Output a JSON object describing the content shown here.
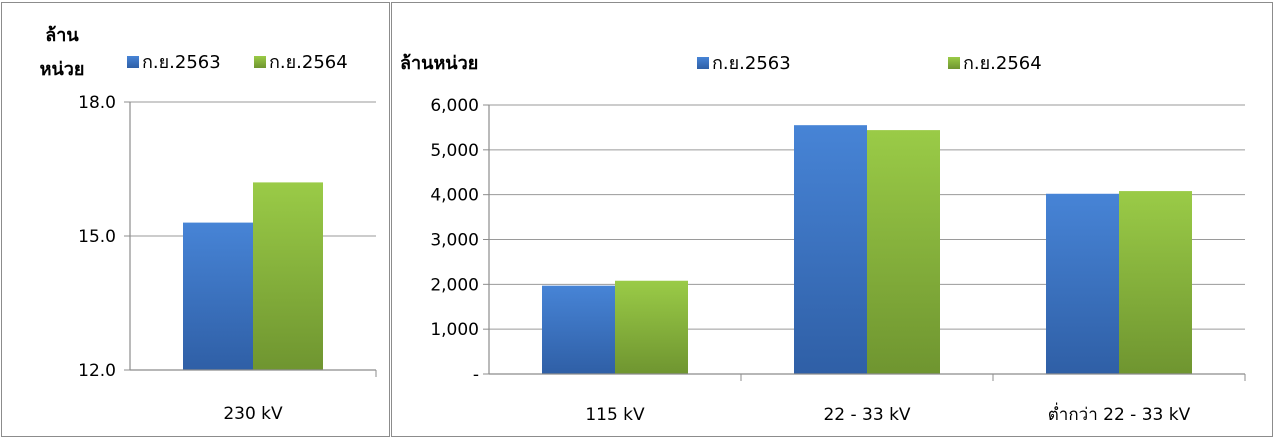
{
  "colors": {
    "series_1": "#3f77c7",
    "series_2": "#8ebb3c",
    "axis": "#8c8c8c",
    "grid": "#9a9a9a"
  },
  "chart_data": [
    {
      "type": "bar",
      "ylabel": "ล้าน หน่วย",
      "ylabel_lines": [
        "ล้าน",
        "หน่วย"
      ],
      "categories": [
        "230 kV"
      ],
      "series": [
        {
          "name": "ก.ย.2563",
          "values": [
            15.3
          ]
        },
        {
          "name": "ก.ย.2564",
          "values": [
            16.2
          ]
        }
      ],
      "ylim": [
        12,
        18
      ],
      "yticks": [
        12,
        15,
        18
      ],
      "ytick_labels": [
        "12.0",
        "15.0",
        "18.0"
      ],
      "grid": false,
      "legend": "top"
    },
    {
      "type": "bar",
      "ylabel": "ล้านหน่วย",
      "categories": [
        "115 kV",
        "22 - 33 kV",
        "ต่ำกว่า 22 - 33 kV"
      ],
      "series": [
        {
          "name": "ก.ย.2563",
          "values": [
            1970,
            5550,
            4020
          ]
        },
        {
          "name": "ก.ย.2564",
          "values": [
            2080,
            5440,
            4080
          ]
        }
      ],
      "ylim": [
        0,
        6000
      ],
      "yticks": [
        0,
        1000,
        2000,
        3000,
        4000,
        5000,
        6000
      ],
      "ytick_labels": [
        "-",
        "1,000",
        "2,000",
        "3,000",
        "4,000",
        "5,000",
        "6,000"
      ],
      "grid": true,
      "legend": "top"
    }
  ]
}
